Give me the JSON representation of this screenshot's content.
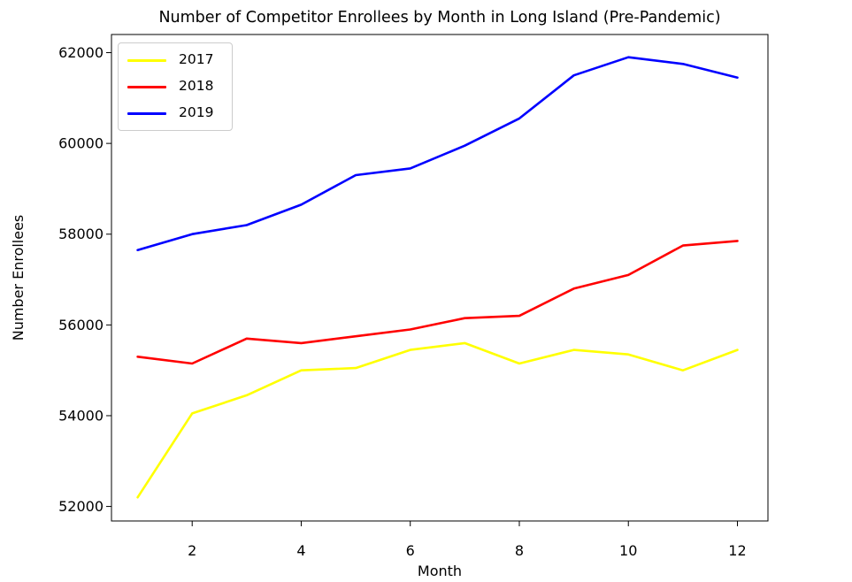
{
  "chart_data": {
    "type": "line",
    "title": "Number of Competitor Enrollees by Month in Long Island (Pre-Pandemic)",
    "xlabel": "Month",
    "ylabel": "Number Enrollees",
    "x": [
      1,
      2,
      3,
      4,
      5,
      6,
      7,
      8,
      9,
      10,
      11,
      12
    ],
    "series": [
      {
        "name": "2017",
        "color": "#ffff00",
        "values": [
          52200,
          54050,
          54450,
          55000,
          55050,
          55450,
          55600,
          55150,
          55450,
          55350,
          55000,
          55450
        ]
      },
      {
        "name": "2018",
        "color": "#ff0000",
        "values": [
          55300,
          55150,
          55700,
          55600,
          55750,
          55900,
          56150,
          56200,
          56800,
          57100,
          57750,
          57850
        ]
      },
      {
        "name": "2019",
        "color": "#0000ff",
        "values": [
          57650,
          58000,
          58200,
          58650,
          59300,
          59450,
          59950,
          60550,
          61500,
          61900,
          61750,
          61450
        ]
      }
    ],
    "x_ticks": [
      2,
      4,
      6,
      8,
      10,
      12
    ],
    "y_ticks": [
      52000,
      54000,
      56000,
      58000,
      60000,
      62000
    ],
    "xlim": [
      0.52,
      12.56
    ],
    "ylim": [
      51680,
      62400
    ],
    "grid": false,
    "legend": {
      "position": "upper left",
      "entries": [
        "2017",
        "2018",
        "2019"
      ]
    },
    "colors": {
      "background": "#ffffff",
      "spines": "#000000",
      "text": "#000000"
    }
  }
}
